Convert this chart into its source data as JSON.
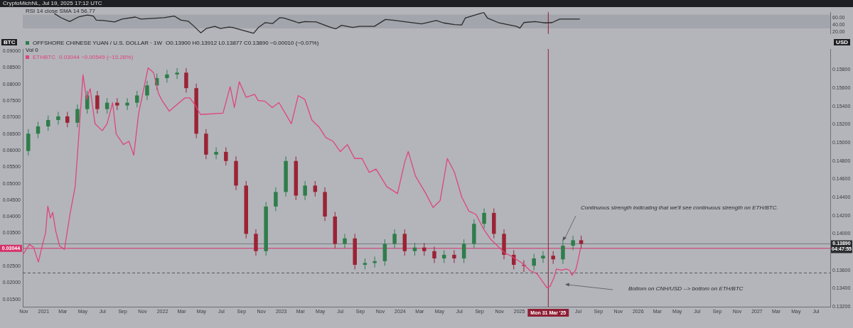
{
  "chart_data": [
    {
      "type": "line",
      "title": "RSI 14 close SMA 14 56.77",
      "subtitle": "CryptoMichNL, Jul 19, 2025 17:12 UTC",
      "xlim": [
        "2020-10-29",
        "2027-08-14"
      ],
      "ylim": [
        14,
        77
      ],
      "yticks": [
        {
          "value": 20,
          "label": "20.00"
        },
        {
          "value": 40,
          "label": "40.00"
        },
        {
          "value": 60,
          "label": "60.00"
        }
      ],
      "tick_labels": "y",
      "bands": [
        {
          "axis": "y",
          "from": 30,
          "to": 70,
          "color": "#a3a5ac"
        }
      ],
      "ref_lines": [
        {
          "axis": "x",
          "value": "2025-03-31",
          "color": "#8e1f35"
        }
      ],
      "series": [
        {
          "type": "line",
          "color": "#2b2b2b",
          "x": [
            "2021-02-03",
            "2021-02-24",
            "2021-03-22",
            "2021-04-20",
            "2021-05-16",
            "2021-06-03",
            "2021-06-12",
            "2021-07-03",
            "2021-08-07",
            "2021-08-30",
            "2021-10-10",
            "2021-10-27",
            "2021-12-03",
            "2022-01-06",
            "2022-02-06",
            "2022-02-27",
            "2022-03-21",
            "2022-04-07",
            "2022-04-29",
            "2022-05-16",
            "2022-06-11",
            "2022-06-28",
            "2022-07-24",
            "2022-08-04",
            "2022-09-10",
            "2022-10-08",
            "2022-10-23",
            "2022-11-13",
            "2022-12-05",
            "2022-12-27",
            "2023-01-09",
            "2023-02-12",
            "2023-02-23",
            "2023-03-15",
            "2023-04-18",
            "2023-06-02",
            "2023-06-18",
            "2023-07-05",
            "2023-08-08",
            "2023-08-30",
            "2023-10-14",
            "2023-11-17",
            "2023-12-09",
            "2024-01-12",
            "2024-03-07",
            "2024-04-21",
            "2024-05-13",
            "2024-06-16",
            "2024-07-08",
            "2024-07-19",
            "2024-08-22",
            "2024-09-14",
            "2024-09-25",
            "2024-10-28",
            "2024-12-23",
            "2025-01-03",
            "2025-01-15",
            "2025-02-18",
            "2025-03-21",
            "2025-04-12",
            "2025-05-05",
            "2025-06-08",
            "2025-07-06"
          ],
          "values": [
            73,
            61,
            50,
            64,
            69,
            66,
            54,
            53,
            49,
            57,
            63,
            57,
            59,
            61,
            66,
            54,
            51,
            37,
            17,
            30,
            36,
            30,
            34,
            33,
            23,
            16,
            33,
            47,
            44,
            61,
            60,
            50,
            46,
            50,
            49,
            33,
            29,
            39,
            33,
            36,
            36,
            56,
            54,
            50,
            43,
            53,
            46,
            41,
            40,
            60,
            70,
            76,
            60,
            47,
            36,
            31,
            47,
            50,
            46,
            47,
            57,
            57,
            57
          ]
        }
      ]
    },
    {
      "type": "candlestick",
      "legend": "top left",
      "ylabel": "BTC",
      "y2label": "USD",
      "annotations": [
        "O0.13900 H0.13912 L0.13877 C0.13890 −0.00010 (−0.07%)",
        "Vol 0",
        "0.03044 −0.00549 (−15.28%)",
        "Continuous strength indicating that we'll see continuous strength on ETH/BTC.",
        "Bottom on CNH/USD --> bottom on ETH/BTC"
      ],
      "xlim": [
        "2020-10-29",
        "2027-08-14"
      ],
      "xticks": [
        {
          "value": "2020-11",
          "label": "Nov"
        },
        {
          "value": "2021-01",
          "label": "2021"
        },
        {
          "value": "2021-03",
          "label": "Mar"
        },
        {
          "value": "2021-05",
          "label": "May"
        },
        {
          "value": "2021-07",
          "label": "Jul"
        },
        {
          "value": "2021-09",
          "label": "Sep"
        },
        {
          "value": "2021-11",
          "label": "Nov"
        },
        {
          "value": "2022-01",
          "label": "2022"
        },
        {
          "value": "2022-03",
          "label": "Mar"
        },
        {
          "value": "2022-05",
          "label": "May"
        },
        {
          "value": "2022-07",
          "label": "Jul"
        },
        {
          "value": "2022-09",
          "label": "Sep"
        },
        {
          "value": "2022-11",
          "label": "Nov"
        },
        {
          "value": "2023-01",
          "label": "2023"
        },
        {
          "value": "2023-03",
          "label": "Mar"
        },
        {
          "value": "2023-05",
          "label": "May"
        },
        {
          "value": "2023-07",
          "label": "Jul"
        },
        {
          "value": "2023-09",
          "label": "Sep"
        },
        {
          "value": "2023-11",
          "label": "Nov"
        },
        {
          "value": "2024-01",
          "label": "2024"
        },
        {
          "value": "2024-03",
          "label": "Mar"
        },
        {
          "value": "2024-05",
          "label": "May"
        },
        {
          "value": "2024-07",
          "label": "Jul"
        },
        {
          "value": "2024-09",
          "label": "Sep"
        },
        {
          "value": "2024-11",
          "label": "Nov"
        },
        {
          "value": "2025-01",
          "label": "2025"
        },
        {
          "value": "2025-07",
          "label": "Jul"
        },
        {
          "value": "2025-09",
          "label": "Sep"
        },
        {
          "value": "2025-11",
          "label": "Nov"
        },
        {
          "value": "2026-01",
          "label": "2026"
        },
        {
          "value": "2026-03",
          "label": "Mar"
        },
        {
          "value": "2026-05",
          "label": "May"
        },
        {
          "value": "2026-07",
          "label": "Jul"
        },
        {
          "value": "2026-09",
          "label": "Sep"
        },
        {
          "value": "2026-11",
          "label": "Nov"
        },
        {
          "value": "2027-01",
          "label": "2027"
        },
        {
          "value": "2027-03",
          "label": "Mar"
        },
        {
          "value": "2027-05",
          "label": "May"
        },
        {
          "value": "2027-07",
          "label": "Jul"
        }
      ],
      "ylim": [
        0.0128,
        0.0907
      ],
      "yticks": [
        {
          "value": 0.015,
          "label": "0.01500"
        },
        {
          "value": 0.02,
          "label": "0.02000"
        },
        {
          "value": 0.025,
          "label": "0.02500"
        },
        {
          "value": 0.035,
          "label": "0.03500"
        },
        {
          "value": 0.04,
          "label": "0.04000"
        },
        {
          "value": 0.045,
          "label": "0.04500"
        },
        {
          "value": 0.05,
          "label": "0.05000"
        },
        {
          "value": 0.055,
          "label": "0.05500"
        },
        {
          "value": 0.06,
          "label": "0.06000"
        },
        {
          "value": 0.065,
          "label": "0.06500"
        },
        {
          "value": 0.07,
          "label": "0.07000"
        },
        {
          "value": 0.075,
          "label": "0.07500"
        },
        {
          "value": 0.08,
          "label": "0.08000"
        },
        {
          "value": 0.085,
          "label": "0.08500"
        },
        {
          "value": 0.09,
          "label": "0.09000"
        }
      ],
      "y2lim": [
        0.132,
        0.1603
      ],
      "y2ticks": [
        {
          "value": 0.132,
          "label": "0.13200"
        },
        {
          "value": 0.134,
          "label": "0.13400"
        },
        {
          "value": 0.136,
          "label": "0.13600"
        },
        {
          "value": 0.14,
          "label": "0.14000"
        },
        {
          "value": 0.142,
          "label": "0.14200"
        },
        {
          "value": 0.144,
          "label": "0.14400"
        },
        {
          "value": 0.146,
          "label": "0.14600"
        },
        {
          "value": 0.148,
          "label": "0.14800"
        },
        {
          "value": 0.15,
          "label": "0.15000"
        },
        {
          "value": 0.152,
          "label": "0.15200"
        },
        {
          "value": 0.154,
          "label": "0.15400"
        },
        {
          "value": 0.156,
          "label": "0.15600"
        },
        {
          "value": 0.158,
          "label": "0.15800"
        }
      ],
      "ref_lines": [
        {
          "axis": "y2",
          "value": 0.1389,
          "label": "0.13890 04:47:55",
          "color": "#7c7e84"
        },
        {
          "axis": "y",
          "value": 0.03044,
          "label": "0.03044",
          "color": "#d6336c"
        },
        {
          "axis": "y2",
          "value": 0.1357,
          "color": "#55575c",
          "line_style": "dashed"
        },
        {
          "axis": "x",
          "value": "2025-03-31",
          "label": "Mon 31 Mar '25",
          "color": "#8e1f35"
        }
      ],
      "series": [
        {
          "type": "candlestick",
          "name": "OFFSHORE CHINESE YUAN / U.S. DOLLAR · 1W",
          "axis": "y2",
          "color": "#2f7d4a",
          "x": [
            "2020-11-15",
            "2020-12-15",
            "2021-01-15",
            "2021-02-15",
            "2021-03-15",
            "2021-04-15",
            "2021-05-15",
            "2021-06-15",
            "2021-07-15",
            "2021-08-15",
            "2021-09-15",
            "2021-10-15",
            "2021-11-15",
            "2021-12-15",
            "2022-01-15",
            "2022-02-15",
            "2022-03-15",
            "2022-04-15",
            "2022-05-15",
            "2022-06-15",
            "2022-07-15",
            "2022-08-15",
            "2022-09-15",
            "2022-10-15",
            "2022-11-15",
            "2022-12-15",
            "2023-01-15",
            "2023-02-15",
            "2023-03-15",
            "2023-04-15",
            "2023-05-15",
            "2023-06-15",
            "2023-07-15",
            "2023-08-15",
            "2023-09-15",
            "2023-10-15",
            "2023-11-15",
            "2023-12-15",
            "2024-01-15",
            "2024-02-15",
            "2024-03-15",
            "2024-04-15",
            "2024-05-15",
            "2024-06-15",
            "2024-07-15",
            "2024-08-15",
            "2024-09-15",
            "2024-10-15",
            "2024-11-15",
            "2024-12-15",
            "2025-01-15",
            "2025-02-15",
            "2025-03-15",
            "2025-04-15",
            "2025-05-15",
            "2025-06-15",
            "2025-07-10"
          ],
          "ohlc": [
            [
              0.1491,
              0.1515,
              0.1486,
              0.151
            ],
            [
              0.151,
              0.1523,
              0.1505,
              0.1518
            ],
            [
              0.1518,
              0.153,
              0.1513,
              0.1525
            ],
            [
              0.1525,
              0.1534,
              0.152,
              0.1529
            ],
            [
              0.1529,
              0.1534,
              0.1517,
              0.1522
            ],
            [
              0.1522,
              0.1542,
              0.1517,
              0.1537
            ],
            [
              0.1537,
              0.1557,
              0.1532,
              0.1552
            ],
            [
              0.1552,
              0.1557,
              0.1532,
              0.1537
            ],
            [
              0.1537,
              0.1549,
              0.1532,
              0.1544
            ],
            [
              0.1544,
              0.1549,
              0.1536,
              0.1541
            ],
            [
              0.1541,
              0.1549,
              0.1536,
              0.1544
            ],
            [
              0.1544,
              0.1557,
              0.1539,
              0.1552
            ],
            [
              0.1552,
              0.1568,
              0.1547,
              0.1563
            ],
            [
              0.1563,
              0.1576,
              0.1558,
              0.1571
            ],
            [
              0.1571,
              0.158,
              0.1566,
              0.1575
            ],
            [
              0.1575,
              0.1582,
              0.157,
              0.1577
            ],
            [
              0.1577,
              0.1582,
              0.1555,
              0.156
            ],
            [
              0.156,
              0.1565,
              0.1505,
              0.151
            ],
            [
              0.151,
              0.1515,
              0.1482,
              0.1487
            ],
            [
              0.1487,
              0.1495,
              0.1482,
              0.149
            ],
            [
              0.149,
              0.1495,
              0.1475,
              0.148
            ],
            [
              0.148,
              0.1485,
              0.1448,
              0.1453
            ],
            [
              0.1453,
              0.1458,
              0.1395,
              0.14
            ],
            [
              0.14,
              0.1405,
              0.1376,
              0.1381
            ],
            [
              0.1381,
              0.1435,
              0.1376,
              0.143
            ],
            [
              0.143,
              0.1451,
              0.1425,
              0.1446
            ],
            [
              0.1446,
              0.1485,
              0.1441,
              0.148
            ],
            [
              0.148,
              0.1485,
              0.1437,
              0.1442
            ],
            [
              0.1442,
              0.1458,
              0.1437,
              0.1453
            ],
            [
              0.1453,
              0.1458,
              0.1441,
              0.1446
            ],
            [
              0.1446,
              0.1451,
              0.1414,
              0.1419
            ],
            [
              0.1419,
              0.1424,
              0.1384,
              0.1389
            ],
            [
              0.1389,
              0.14,
              0.1384,
              0.1395
            ],
            [
              0.1395,
              0.14,
              0.1361,
              0.1366
            ],
            [
              0.1366,
              0.1373,
              0.1361,
              0.1368
            ],
            [
              0.1368,
              0.1375,
              0.1363,
              0.137
            ],
            [
              0.137,
              0.1394,
              0.1365,
              0.1389
            ],
            [
              0.1389,
              0.1405,
              0.1384,
              0.14
            ],
            [
              0.14,
              0.1405,
              0.1376,
              0.1381
            ],
            [
              0.1381,
              0.139,
              0.1376,
              0.1385
            ],
            [
              0.1385,
              0.139,
              0.1376,
              0.1381
            ],
            [
              0.1381,
              0.1386,
              0.1368,
              0.1373
            ],
            [
              0.1373,
              0.1382,
              0.1368,
              0.1377
            ],
            [
              0.1377,
              0.1382,
              0.1368,
              0.1373
            ],
            [
              0.1373,
              0.1394,
              0.1368,
              0.1389
            ],
            [
              0.1389,
              0.1416,
              0.1384,
              0.1411
            ],
            [
              0.1411,
              0.1428,
              0.1406,
              0.1423
            ],
            [
              0.1423,
              0.1428,
              0.1395,
              0.14
            ],
            [
              0.14,
              0.1405,
              0.1372,
              0.1377
            ],
            [
              0.1377,
              0.1382,
              0.1361,
              0.1366
            ],
            [
              0.1366,
              0.1371,
              0.1358,
              0.1365
            ],
            [
              0.1365,
              0.1378,
              0.136,
              0.1373
            ],
            [
              0.1373,
              0.1381,
              0.1368,
              0.1376
            ],
            [
              0.1376,
              0.1381,
              0.1367,
              0.1372
            ],
            [
              0.1372,
              0.1392,
              0.1367,
              0.1387
            ],
            [
              0.1387,
              0.1398,
              0.1382,
              0.1393
            ],
            [
              0.1393,
              0.1398,
              0.1384,
              0.1389
            ]
          ],
          "colors": [
            "#2f7d4a",
            "#2f7d4a",
            "#2f7d4a",
            "#2f7d4a",
            "#9b2335",
            "#2f7d4a",
            "#2f7d4a",
            "#9b2335",
            "#2f7d4a",
            "#9b2335",
            "#2f7d4a",
            "#2f7d4a",
            "#2f7d4a",
            "#2f7d4a",
            "#2f7d4a",
            "#2f7d4a",
            "#9b2335",
            "#9b2335",
            "#9b2335",
            "#2f7d4a",
            "#9b2335",
            "#9b2335",
            "#9b2335",
            "#9b2335",
            "#2f7d4a",
            "#2f7d4a",
            "#2f7d4a",
            "#9b2335",
            "#2f7d4a",
            "#9b2335",
            "#9b2335",
            "#9b2335",
            "#2f7d4a",
            "#9b2335",
            "#2f7d4a",
            "#2f7d4a",
            "#2f7d4a",
            "#2f7d4a",
            "#9b2335",
            "#2f7d4a",
            "#9b2335",
            "#9b2335",
            "#2f7d4a",
            "#9b2335",
            "#2f7d4a",
            "#2f7d4a",
            "#2f7d4a",
            "#9b2335",
            "#9b2335",
            "#9b2335",
            "#9b2335",
            "#2f7d4a",
            "#2f7d4a",
            "#9b2335",
            "#2f7d4a",
            "#2f7d4a",
            "#9b2335"
          ]
        },
        {
          "type": "line",
          "name": "ETHBTC",
          "axis": "y",
          "color": "#e0457b",
          "x": [
            "2020-10-29",
            "2020-11-18",
            "2020-12-01",
            "2020-12-16",
            "2021-01-01",
            "2021-01-07",
            "2021-01-14",
            "2021-01-22",
            "2021-01-29",
            "2021-02-07",
            "2021-02-19",
            "2021-03-06",
            "2021-03-23",
            "2021-04-08",
            "2021-04-21",
            "2021-05-02",
            "2021-05-13",
            "2021-05-24",
            "2021-06-08",
            "2021-06-30",
            "2021-07-15",
            "2021-08-01",
            "2021-08-12",
            "2021-09-03",
            "2021-09-20",
            "2021-10-05",
            "2021-10-20",
            "2021-11-18",
            "2021-12-05",
            "2021-12-20",
            "2021-12-31",
            "2022-01-22",
            "2022-03-11",
            "2022-03-26",
            "2022-04-11",
            "2022-04-28",
            "2022-07-06",
            "2022-07-28",
            "2022-08-10",
            "2022-08-25",
            "2022-09-15",
            "2022-10-11",
            "2022-10-22",
            "2022-11-12",
            "2022-12-04",
            "2022-12-25",
            "2023-02-01",
            "2023-02-22",
            "2023-03-14",
            "2023-04-05",
            "2023-04-27",
            "2023-05-18",
            "2023-06-09",
            "2023-07-01",
            "2023-07-23",
            "2023-08-14",
            "2023-09-06",
            "2023-09-28",
            "2023-10-19",
            "2023-11-21",
            "2023-12-24",
            "2024-01-15",
            "2024-01-26",
            "2024-02-17",
            "2024-03-20",
            "2024-04-11",
            "2024-05-03",
            "2024-05-25",
            "2024-06-16",
            "2024-07-08",
            "2024-07-30",
            "2024-08-21",
            "2024-09-12",
            "2024-10-04",
            "2024-10-26",
            "2024-11-17",
            "2024-12-09",
            "2025-01-11",
            "2025-02-02",
            "2025-02-24",
            "2025-03-12",
            "2025-03-27",
            "2025-04-06",
            "2025-04-18",
            "2025-04-25",
            "2025-05-10",
            "2025-05-25",
            "2025-06-05",
            "2025-06-12",
            "2025-06-23",
            "2025-06-30",
            "2025-07-08"
          ],
          "values": [
            0.0285,
            0.0316,
            0.0308,
            0.0263,
            0.0329,
            0.035,
            0.0432,
            0.0396,
            0.0413,
            0.0358,
            0.0312,
            0.0301,
            0.0407,
            0.0491,
            0.0671,
            0.0829,
            0.0755,
            0.0787,
            0.0681,
            0.066,
            0.0681,
            0.0745,
            0.065,
            0.0618,
            0.0628,
            0.0586,
            0.0713,
            0.085,
            0.0835,
            0.0772,
            0.0751,
            0.0719,
            0.0759,
            0.0759,
            0.0738,
            0.0709,
            0.0713,
            0.0793,
            0.073,
            0.0808,
            0.0761,
            0.077,
            0.0751,
            0.0749,
            0.073,
            0.0745,
            0.0681,
            0.0766,
            0.0755,
            0.0692,
            0.0671,
            0.0639,
            0.0628,
            0.0597,
            0.0618,
            0.0576,
            0.0576,
            0.0534,
            0.0544,
            0.0491,
            0.047,
            0.0565,
            0.0597,
            0.0523,
            0.047,
            0.0428,
            0.0449,
            0.0576,
            0.0534,
            0.046,
            0.0417,
            0.0407,
            0.0365,
            0.0333,
            0.0312,
            0.0291,
            0.028,
            0.0259,
            0.0238,
            0.0228,
            0.0206,
            0.0185,
            0.019,
            0.0217,
            0.0242,
            0.0238,
            0.0242,
            0.0238,
            0.0223,
            0.0238,
            0.0266,
            0.0304
          ]
        }
      ]
    }
  ]
}
